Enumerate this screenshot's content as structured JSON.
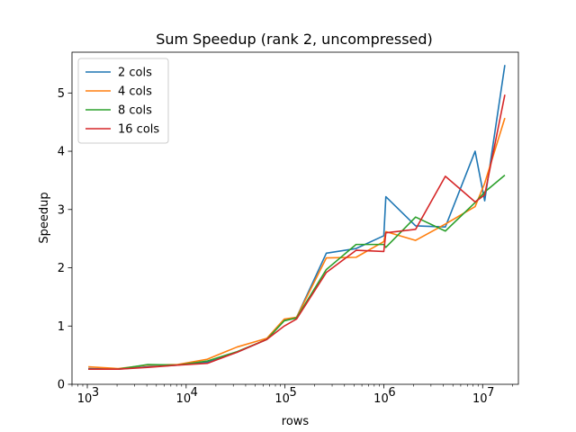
{
  "chart_data": {
    "type": "line",
    "title": "Sum Speedup (rank 2, uncompressed)",
    "xlabel": "rows",
    "ylabel": "Speedup",
    "xscale": "log",
    "xlim": [
      700,
      23000000
    ],
    "ylim": [
      0,
      5.7
    ],
    "x_ticks": [
      {
        "value": 1000,
        "base": "10",
        "exp": "3"
      },
      {
        "value": 10000,
        "base": "10",
        "exp": "4"
      },
      {
        "value": 100000,
        "base": "10",
        "exp": "5"
      },
      {
        "value": 1000000,
        "base": "10",
        "exp": "6"
      },
      {
        "value": 10000000,
        "base": "10",
        "exp": "7"
      }
    ],
    "y_ticks": [
      0,
      1,
      2,
      3,
      4,
      5
    ],
    "y_tick_labels": [
      "0",
      "1",
      "2",
      "3",
      "4",
      "5"
    ],
    "grid": false,
    "legend_position": "top-left",
    "x": [
      1024,
      2048,
      4096,
      8192,
      16384,
      32768,
      65536,
      98304,
      131072,
      262144,
      524288,
      1000000,
      1048576,
      2097152,
      4194304,
      8388608,
      10485760,
      16777216
    ],
    "series": [
      {
        "name": "2 cols",
        "color": "#1f77b4",
        "values": [
          0.27,
          0.26,
          0.3,
          0.33,
          0.38,
          0.55,
          0.77,
          1.1,
          1.15,
          2.25,
          2.33,
          2.55,
          3.22,
          2.72,
          2.7,
          4.0,
          3.15,
          5.48
        ]
      },
      {
        "name": "4 cols",
        "color": "#ff7f0e",
        "values": [
          0.3,
          0.27,
          0.33,
          0.34,
          0.43,
          0.64,
          0.79,
          1.12,
          1.15,
          2.17,
          2.18,
          2.45,
          2.62,
          2.47,
          2.75,
          3.05,
          3.45,
          4.57
        ]
      },
      {
        "name": "8 cols",
        "color": "#2ca02c",
        "values": [
          0.26,
          0.26,
          0.34,
          0.33,
          0.4,
          0.56,
          0.77,
          1.09,
          1.14,
          1.97,
          2.4,
          2.4,
          2.35,
          2.87,
          2.63,
          3.12,
          3.3,
          3.59
        ]
      },
      {
        "name": "16 cols",
        "color": "#d62728",
        "values": [
          0.26,
          0.26,
          0.29,
          0.33,
          0.36,
          0.55,
          0.77,
          1.0,
          1.12,
          1.92,
          2.3,
          2.28,
          2.6,
          2.66,
          3.57,
          3.13,
          3.25,
          4.97
        ]
      }
    ]
  }
}
